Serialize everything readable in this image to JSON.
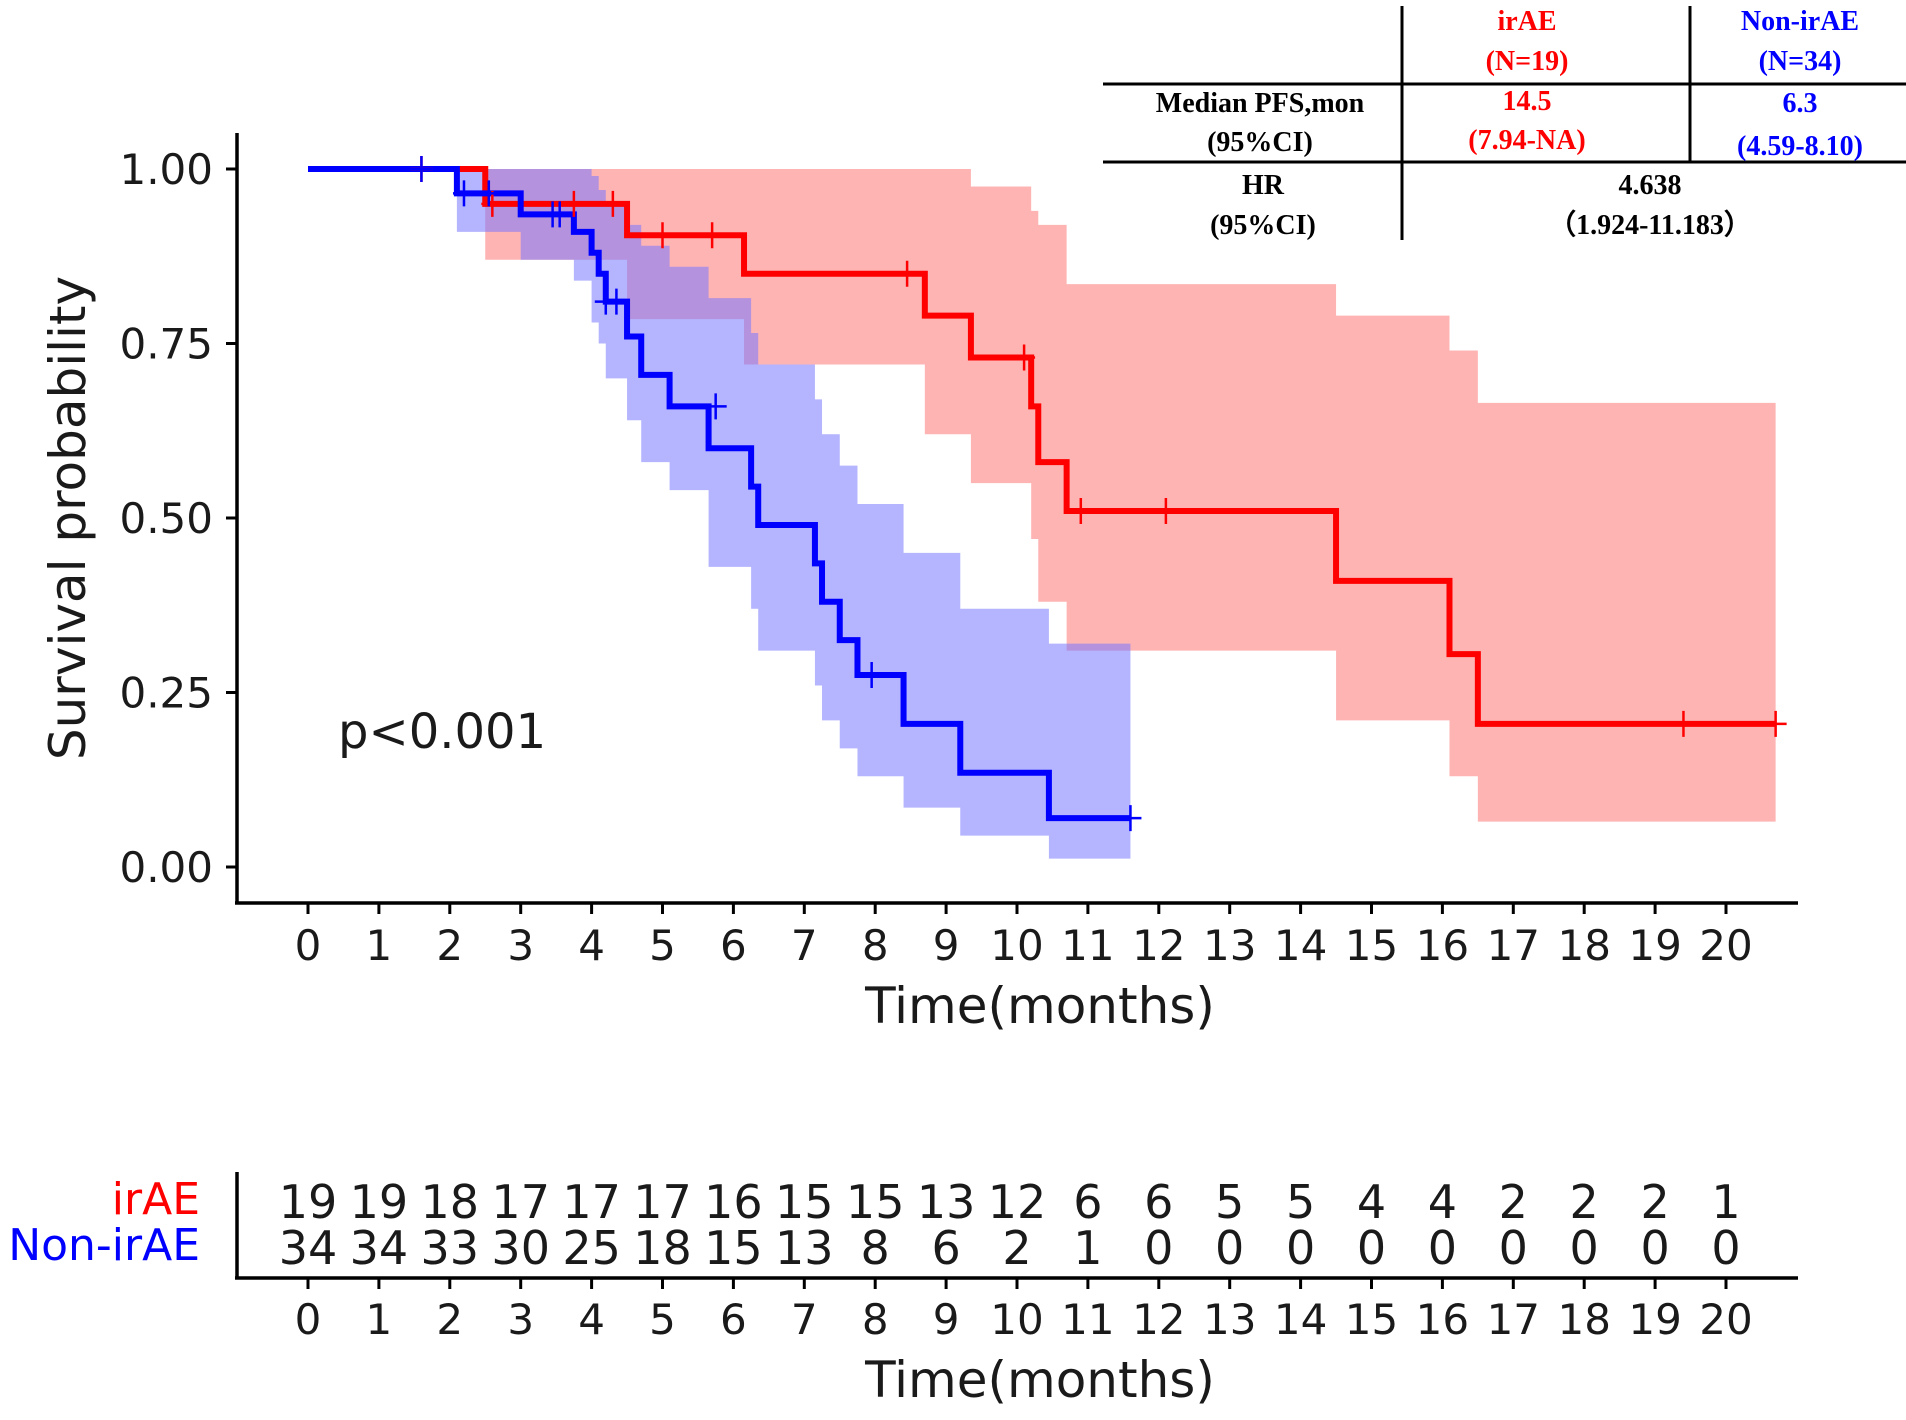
{
  "chart_data": {
    "type": "line",
    "subtype": "kaplan-meier",
    "ylabel": "Survival probability",
    "xlabel": "Time(months)",
    "ylim": [
      0,
      1
    ],
    "xlim": [
      0,
      20
    ],
    "x_ticks": [
      0,
      1,
      2,
      3,
      4,
      5,
      6,
      7,
      8,
      9,
      10,
      11,
      12,
      13,
      14,
      15,
      16,
      17,
      18,
      19,
      20
    ],
    "y_ticks": [
      "0.00",
      "0.25",
      "0.50",
      "0.75",
      "1.00"
    ],
    "p_value": "p<0.001",
    "colors": {
      "irAE": "#ff0000",
      "nonirAE": "#0000ff",
      "irAE_ci": "#ffb3b3",
      "nonirAE_ci": "#b3b3ff"
    },
    "series": [
      {
        "name": "irAE",
        "color": "#ff0000",
        "ci_color": "#ff7777",
        "steps": [
          [
            0,
            1.0
          ],
          [
            2.5,
            0.95
          ],
          [
            4.5,
            0.905
          ],
          [
            6.15,
            0.85
          ],
          [
            8.7,
            0.79
          ],
          [
            9.35,
            0.73
          ],
          [
            10.2,
            0.66
          ],
          [
            10.3,
            0.58
          ],
          [
            10.7,
            0.51
          ],
          [
            14.5,
            0.41
          ],
          [
            16.1,
            0.305
          ],
          [
            16.5,
            0.205
          ],
          [
            20.7,
            0.205
          ]
        ],
        "ci_upper": [
          [
            0,
            1.0
          ],
          [
            2.5,
            1.0
          ],
          [
            4.5,
            1.0
          ],
          [
            6.15,
            1.0
          ],
          [
            8.7,
            1.0
          ],
          [
            9.35,
            0.975
          ],
          [
            10.2,
            0.94
          ],
          [
            10.3,
            0.92
          ],
          [
            10.7,
            0.835
          ],
          [
            14.5,
            0.79
          ],
          [
            16.1,
            0.74
          ],
          [
            16.5,
            0.665
          ],
          [
            20.7,
            0.665
          ]
        ],
        "ci_lower": [
          [
            0,
            1.0
          ],
          [
            2.5,
            0.87
          ],
          [
            4.5,
            0.785
          ],
          [
            6.15,
            0.72
          ],
          [
            8.7,
            0.62
          ],
          [
            9.35,
            0.55
          ],
          [
            10.2,
            0.47
          ],
          [
            10.3,
            0.38
          ],
          [
            10.7,
            0.31
          ],
          [
            14.5,
            0.21
          ],
          [
            16.1,
            0.13
          ],
          [
            16.5,
            0.065
          ],
          [
            20.7,
            0.065
          ]
        ],
        "censored": [
          [
            1.6,
            1.0
          ],
          [
            2.6,
            0.95
          ],
          [
            3.75,
            0.95
          ],
          [
            4.3,
            0.95
          ],
          [
            5.0,
            0.905
          ],
          [
            5.7,
            0.905
          ],
          [
            8.45,
            0.85
          ],
          [
            10.1,
            0.73
          ],
          [
            10.9,
            0.51
          ],
          [
            12.1,
            0.51
          ],
          [
            19.4,
            0.205
          ],
          [
            20.7,
            0.205
          ]
        ]
      },
      {
        "name": "Non-irAE",
        "color": "#0000ff",
        "ci_color": "#7777ff",
        "steps": [
          [
            0,
            1.0
          ],
          [
            2.1,
            0.965
          ],
          [
            3.0,
            0.935
          ],
          [
            3.75,
            0.91
          ],
          [
            4.0,
            0.88
          ],
          [
            4.1,
            0.85
          ],
          [
            4.2,
            0.81
          ],
          [
            4.5,
            0.76
          ],
          [
            4.7,
            0.705
          ],
          [
            5.1,
            0.66
          ],
          [
            5.65,
            0.6
          ],
          [
            6.25,
            0.545
          ],
          [
            6.35,
            0.49
          ],
          [
            7.15,
            0.435
          ],
          [
            7.25,
            0.38
          ],
          [
            7.5,
            0.325
          ],
          [
            7.75,
            0.275
          ],
          [
            8.4,
            0.205
          ],
          [
            9.2,
            0.135
          ],
          [
            10.45,
            0.07
          ],
          [
            11.6,
            0.07
          ]
        ],
        "ci_upper": [
          [
            0,
            1.0
          ],
          [
            2.1,
            1.0
          ],
          [
            3.0,
            1.0
          ],
          [
            3.75,
            1.0
          ],
          [
            4.0,
            0.99
          ],
          [
            4.1,
            0.97
          ],
          [
            4.2,
            0.95
          ],
          [
            4.5,
            0.92
          ],
          [
            4.7,
            0.89
          ],
          [
            5.1,
            0.86
          ],
          [
            5.65,
            0.815
          ],
          [
            6.25,
            0.765
          ],
          [
            6.35,
            0.72
          ],
          [
            7.15,
            0.67
          ],
          [
            7.25,
            0.62
          ],
          [
            7.5,
            0.575
          ],
          [
            7.75,
            0.52
          ],
          [
            8.4,
            0.45
          ],
          [
            9.2,
            0.37
          ],
          [
            10.45,
            0.32
          ],
          [
            11.6,
            0.32
          ]
        ],
        "ci_lower": [
          [
            0,
            1.0
          ],
          [
            2.1,
            0.91
          ],
          [
            3.0,
            0.87
          ],
          [
            3.75,
            0.84
          ],
          [
            4.0,
            0.78
          ],
          [
            4.1,
            0.75
          ],
          [
            4.2,
            0.7
          ],
          [
            4.5,
            0.64
          ],
          [
            4.7,
            0.58
          ],
          [
            5.1,
            0.54
          ],
          [
            5.65,
            0.43
          ],
          [
            6.25,
            0.37
          ],
          [
            6.35,
            0.31
          ],
          [
            7.15,
            0.26
          ],
          [
            7.25,
            0.21
          ],
          [
            7.5,
            0.17
          ],
          [
            7.75,
            0.13
          ],
          [
            8.4,
            0.085
          ],
          [
            9.2,
            0.045
          ],
          [
            10.45,
            0.012
          ],
          [
            11.6,
            0.012
          ]
        ],
        "censored": [
          [
            1.6,
            1.0
          ],
          [
            2.2,
            0.965
          ],
          [
            2.55,
            0.965
          ],
          [
            3.45,
            0.935
          ],
          [
            3.55,
            0.935
          ],
          [
            4.2,
            0.81
          ],
          [
            4.35,
            0.81
          ],
          [
            5.75,
            0.66
          ],
          [
            7.95,
            0.275
          ],
          [
            11.6,
            0.07
          ]
        ]
      }
    ],
    "risk_table": {
      "xlabel": "Time(months)",
      "rows": [
        {
          "label": "irAE",
          "color": "#ff0000",
          "values": [
            19,
            19,
            18,
            17,
            17,
            17,
            16,
            15,
            15,
            13,
            12,
            6,
            6,
            5,
            5,
            4,
            4,
            2,
            2,
            2,
            1
          ]
        },
        {
          "label": "Non-irAE",
          "color": "#0000ff",
          "values": [
            34,
            34,
            33,
            30,
            25,
            18,
            15,
            13,
            8,
            6,
            2,
            1,
            0,
            0,
            0,
            0,
            0,
            0,
            0,
            0,
            0
          ]
        }
      ]
    },
    "summary_table": {
      "group1_name": "irAE",
      "group1_n": "(N=19)",
      "group2_name": "Non-irAE",
      "group2_n": "(N=34)",
      "row1_label_a": "Median PFS,mon",
      "row1_label_b": "(95%CI)",
      "group1_median": "14.5",
      "group1_ci": "(7.94-NA)",
      "group2_median": "6.3",
      "group2_ci": "(4.59-8.10)",
      "hr_label": "HR",
      "hr_ci_label": "(95%CI)",
      "hr_value": "4.638",
      "hr_ci": "（1.924-11.183）"
    }
  }
}
